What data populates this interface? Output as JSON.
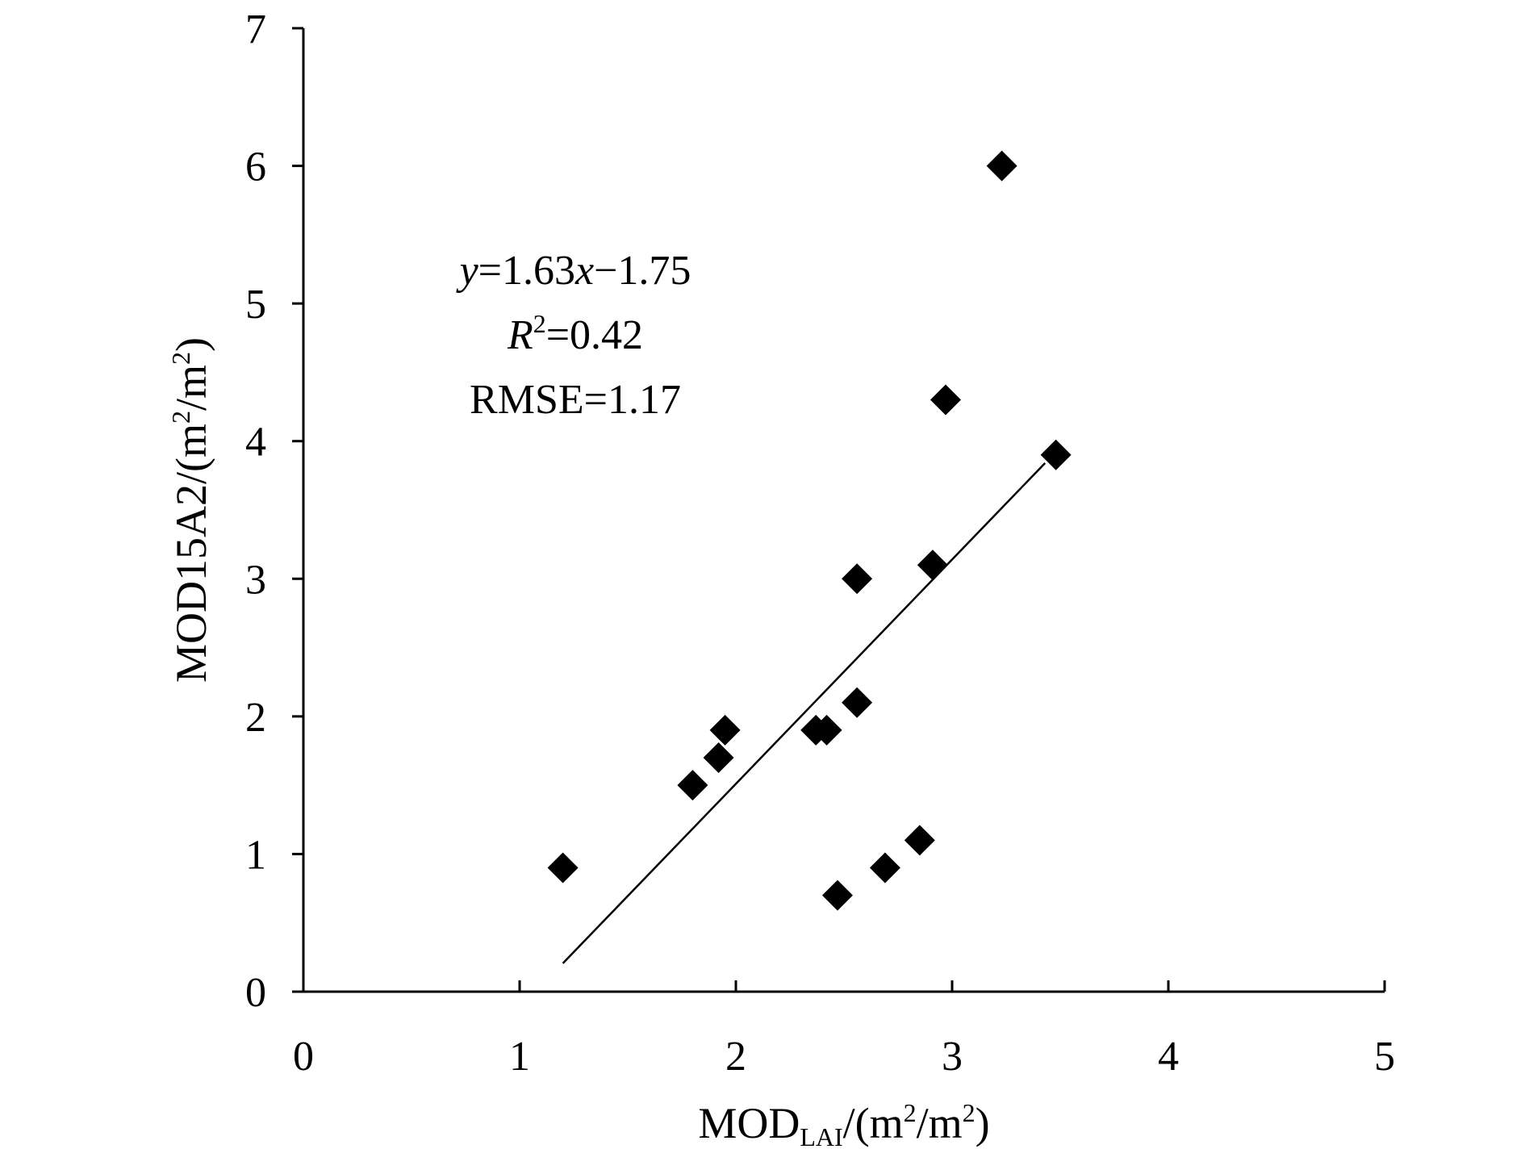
{
  "chart_data": {
    "type": "scatter",
    "xlabel": {
      "main": "MOD",
      "sub": "LAI",
      "unit_prefix": "/(m",
      "sup1": "2",
      "mid": "/m",
      "sup2": "2",
      "close": ")"
    },
    "ylabel": {
      "main": "MOD15A2/(m",
      "sup1": "2",
      "mid": "/m",
      "sup2": "2",
      "close": ")"
    },
    "xlim": [
      0,
      5
    ],
    "ylim": [
      0,
      7
    ],
    "xticks": [
      0,
      1,
      2,
      3,
      4,
      5
    ],
    "yticks": [
      0,
      1,
      2,
      3,
      4,
      5,
      6,
      7
    ],
    "grid": false,
    "series": [
      {
        "name": "points",
        "marker": "diamond",
        "color": "#000000",
        "points": [
          {
            "x": 1.2,
            "y": 0.9
          },
          {
            "x": 1.8,
            "y": 1.5
          },
          {
            "x": 1.92,
            "y": 1.7
          },
          {
            "x": 1.95,
            "y": 1.9
          },
          {
            "x": 2.37,
            "y": 1.9
          },
          {
            "x": 2.42,
            "y": 1.9
          },
          {
            "x": 2.47,
            "y": 0.7
          },
          {
            "x": 2.56,
            "y": 2.1
          },
          {
            "x": 2.56,
            "y": 3.0
          },
          {
            "x": 2.69,
            "y": 0.9
          },
          {
            "x": 2.85,
            "y": 1.1
          },
          {
            "x": 2.91,
            "y": 3.1
          },
          {
            "x": 2.97,
            "y": 4.3
          },
          {
            "x": 3.23,
            "y": 6.0
          },
          {
            "x": 3.48,
            "y": 3.9
          }
        ]
      }
    ],
    "fit_line": {
      "slope": 1.63,
      "intercept": -1.75,
      "x_start": 1.2,
      "x_end": 3.43
    },
    "annotations": {
      "eq_y": "y",
      "eq_mid": "=1.63",
      "eq_x": "x",
      "eq_tail": "−1.75",
      "r2_r": "R",
      "r2_sup": "2",
      "r2_val": "=0.42",
      "rmse": "RMSE=1.17"
    }
  }
}
